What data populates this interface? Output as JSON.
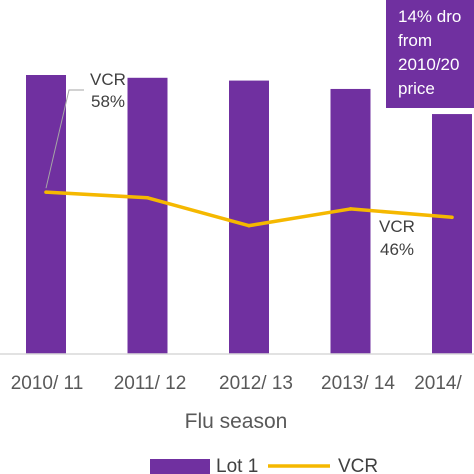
{
  "chart_data": {
    "type": "bar",
    "categories": [
      "2010/ 11",
      "2011/ 12",
      "2012/ 13",
      "2013/ 14",
      "2014/"
    ],
    "series": [
      {
        "name": "Lot 1",
        "type": "bar",
        "color": "#7030a0",
        "values": [
          100,
          99,
          98,
          95,
          86
        ]
      },
      {
        "name": "VCR",
        "type": "line",
        "color": "#f5b800",
        "values": [
          58,
          56,
          46,
          52,
          49
        ]
      }
    ],
    "xlabel": "Flu season",
    "ylabel": "",
    "ylim": [
      0,
      100
    ],
    "grid": false,
    "legend": "bottom",
    "annotations": [
      {
        "series": "VCR",
        "index": 0,
        "lines": [
          "VCR",
          "58%"
        ]
      },
      {
        "series": "VCR",
        "index": 2,
        "lines": [
          "VCR",
          "46%"
        ]
      }
    ],
    "callout": {
      "lines": [
        "14% dro",
        "from",
        "2010/20",
        "price"
      ],
      "color": "#7030a0"
    }
  }
}
